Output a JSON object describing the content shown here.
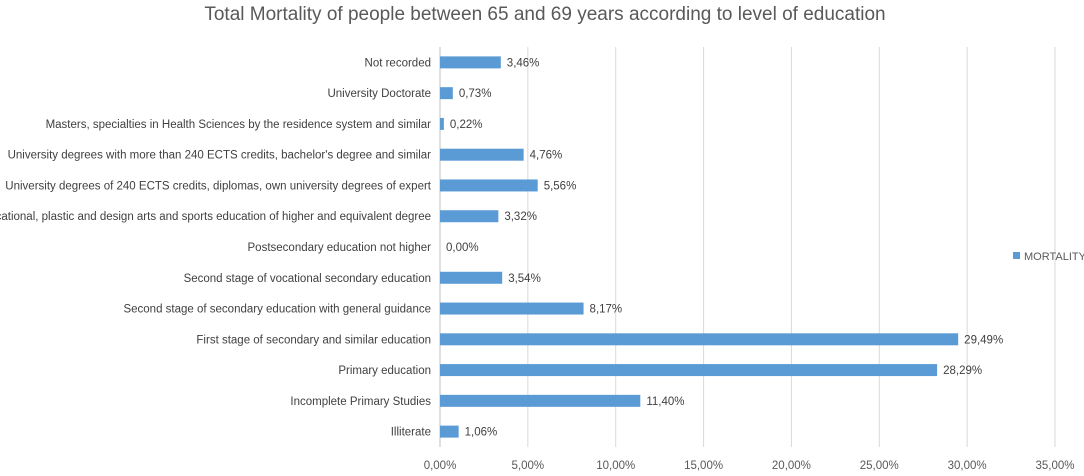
{
  "chart_data": {
    "type": "bar",
    "orientation": "horizontal",
    "title": "Total Mortality of people between 65 and 69 years according to level of education",
    "xlabel": "",
    "ylabel": "",
    "xlim": [
      0,
      35
    ],
    "grid": true,
    "legend_position": "right",
    "categories": [
      "Not recorded",
      "University Doctorate",
      "Masters, specialties in Health Sciences by the residence system and similar",
      "University degrees with more than 240 ECTS credits, bachelor's degree and similar",
      "University degrees of 240 ECTS credits, diplomas, own university degrees of expert",
      "Vocational, plastic and design arts and sports education of higher and equivalent degree",
      "Postsecondary education not higher",
      "Second stage of vocational secondary education",
      "Second stage of secondary education with general guidance",
      "First stage of secondary and similar education",
      "Primary education",
      "Incomplete Primary Studies",
      "Illiterate"
    ],
    "series": [
      {
        "name": "MORTALITY",
        "color": "#5b9bd5",
        "values": [
          3.46,
          0.73,
          0.22,
          4.76,
          5.56,
          3.32,
          0.0,
          3.54,
          8.17,
          29.49,
          28.29,
          11.4,
          1.06
        ],
        "labels": [
          "3,46%",
          "0,73%",
          "0,22%",
          "4,76%",
          "5,56%",
          "3,32%",
          "0,00%",
          "3,54%",
          "8,17%",
          "29,49%",
          "28,29%",
          "11,40%",
          "1,06%"
        ]
      }
    ],
    "x_ticks": [
      0,
      5,
      10,
      15,
      20,
      25,
      30,
      35
    ],
    "x_tick_labels": [
      "0,00%",
      "5,00%",
      "10,00%",
      "15,00%",
      "20,00%",
      "25,00%",
      "30,00%",
      "35,00%"
    ]
  }
}
